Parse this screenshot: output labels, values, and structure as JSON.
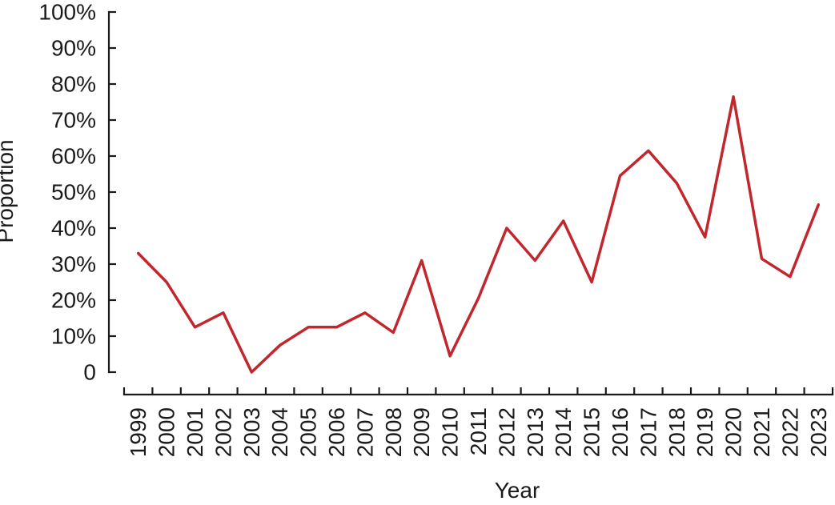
{
  "figure": {
    "background": "#ffffff",
    "text_color": "#1a1a1a",
    "axis_color": "#1a1a1a"
  },
  "chart_data": {
    "type": "line",
    "title": "",
    "xlabel": "Year",
    "ylabel": "Proportion",
    "x": [
      "1999",
      "2000",
      "2001",
      "2002",
      "2003",
      "2004",
      "2005",
      "2006",
      "2007",
      "2008",
      "2009",
      "2010",
      "2011",
      "2012",
      "2013",
      "2014",
      "2015",
      "2016",
      "2017",
      "2018",
      "2019",
      "2020",
      "2021",
      "2022",
      "2023"
    ],
    "values": [
      33,
      25,
      12.5,
      16.5,
      0,
      7.5,
      12.5,
      12.5,
      16.5,
      11,
      31,
      4.5,
      20.5,
      40,
      31,
      42,
      25,
      54.5,
      61.5,
      52.5,
      37.5,
      76.5,
      31.5,
      26.5,
      46.5
    ],
    "ylim": [
      0,
      100
    ],
    "ytick_values": [
      0,
      10,
      20,
      30,
      40,
      50,
      60,
      70,
      80,
      90,
      100
    ],
    "ytick_labels": [
      "0",
      "10%",
      "20%",
      "30%",
      "40%",
      "50%",
      "60%",
      "70%",
      "80%",
      "90%",
      "100%"
    ],
    "line_color": "#c1272d",
    "grid": false,
    "legend": null,
    "tick_style": "inward, category boundaries on x axis"
  }
}
